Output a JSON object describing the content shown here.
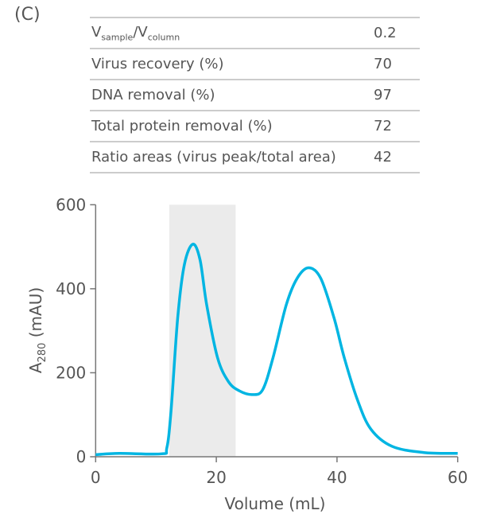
{
  "panel_label": "(C)",
  "table": {
    "rows": [
      {
        "label_main": "V",
        "label_sub1": "sample",
        "label_slash": "/V",
        "label_sub2": "column",
        "value": "0.2"
      },
      {
        "label": "Virus recovery (%)",
        "value": "70"
      },
      {
        "label": "DNA removal (%)",
        "value": "97"
      },
      {
        "label": "Total protein removal (%)",
        "value": "72"
      },
      {
        "label": "Ratio areas (virus peak/total area)",
        "value": "42"
      }
    ]
  },
  "chart_data": {
    "type": "line",
    "xlabel": "Volume (mL)",
    "ylabel_main": "A",
    "ylabel_sub": "280",
    "ylabel_unit": " (mAU)",
    "xlim": [
      0,
      60
    ],
    "ylim": [
      0,
      600
    ],
    "xticks": [
      "0",
      "20",
      "40",
      "60"
    ],
    "yticks": [
      "0",
      "200",
      "400",
      "600"
    ],
    "grid": false,
    "line_color": "#00b5e2",
    "shaded_region": {
      "x_start": 12.2,
      "x_end": 23.2,
      "color": "#ebebeb"
    },
    "series": [
      {
        "x": [
          0,
          3.9,
          10.9,
          11.8,
          12.5,
          13.6,
          14.7,
          16.1,
          17.3,
          18.4,
          20.2,
          22.0,
          23.8,
          26.0,
          27.7,
          29.4,
          31.6,
          33.4,
          35.3,
          37.3,
          39.5,
          41.2,
          43.4,
          45.6,
          49.1,
          54.4,
          60
        ],
        "y": [
          5,
          8,
          7,
          21,
          110,
          331,
          457,
          506,
          469,
          362,
          236,
          179,
          157,
          148,
          160,
          236,
          362,
          425,
          450,
          425,
          331,
          236,
          135,
          66,
          25,
          10,
          8
        ]
      }
    ]
  }
}
